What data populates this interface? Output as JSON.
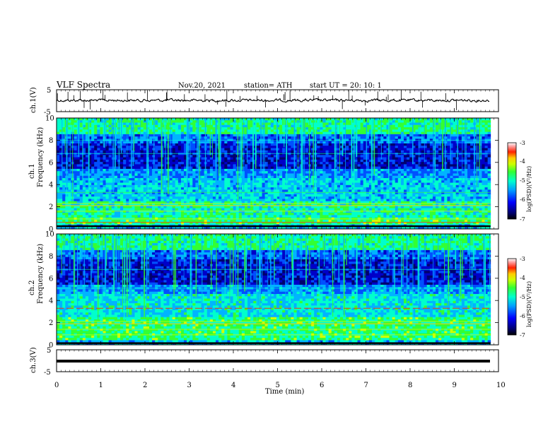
{
  "header": {
    "title": "VLF  Spectra",
    "date": "Nov.20, 2021",
    "station": "station= ATH",
    "start": "start  UT  =    20: 10: 1"
  },
  "colors": {
    "spectrogram": [
      "#00006e",
      "#0000c8",
      "#0050ff",
      "#00b4ff",
      "#00ffcc",
      "#33ff33",
      "#ccff00",
      "#ffcc00",
      "#ff3300",
      "#cc0000"
    ],
    "waveform": "#000000"
  },
  "chart_data": [
    {
      "type": "line",
      "panel": "ch1-waveform",
      "ylabel": "ch.1(V)",
      "ylim": [
        -5,
        5
      ],
      "yticks": [
        "5",
        "-5"
      ],
      "x_range_min": [
        0,
        9.8
      ],
      "note_values": "continuous VLF waveform near 0 V with spikes"
    },
    {
      "type": "heatmap",
      "panel": "ch1-spectrogram",
      "ylabel": "Frequency (kHz)",
      "channel_label": "ch.1",
      "ylim": [
        0,
        10
      ],
      "yticks": [
        "0",
        "2",
        "4",
        "6",
        "8",
        "10"
      ],
      "colorbar": {
        "label": "log(PSD)(V²/Hz)",
        "ticks": [
          "-3",
          "-4",
          "-5",
          "-6",
          "-7"
        ],
        "range": [
          -7,
          -3
        ]
      }
    },
    {
      "type": "heatmap",
      "panel": "ch2-spectrogram",
      "ylabel": "Frequency (kHz)",
      "channel_label": "ch.2",
      "ylim": [
        0,
        10
      ],
      "yticks": [
        "0",
        "2",
        "4",
        "6",
        "8",
        "10"
      ],
      "colorbar": {
        "label": "log(PSD)(V²/Hz)",
        "ticks": [
          "-3",
          "-4",
          "-5",
          "-6",
          "-7"
        ],
        "range": [
          -7,
          -3
        ]
      }
    },
    {
      "type": "line",
      "panel": "ch3-waveform",
      "ylabel": "ch.3(V)",
      "ylim": [
        -5,
        5
      ],
      "yticks": [
        "5",
        "-5"
      ],
      "x_range_min": [
        0,
        9.8
      ]
    }
  ],
  "xaxis": {
    "label": "Time  (min)",
    "ticks": [
      "0",
      "1",
      "2",
      "3",
      "4",
      "5",
      "6",
      "7",
      "8",
      "9",
      "10"
    ],
    "range": [
      0,
      10
    ]
  }
}
